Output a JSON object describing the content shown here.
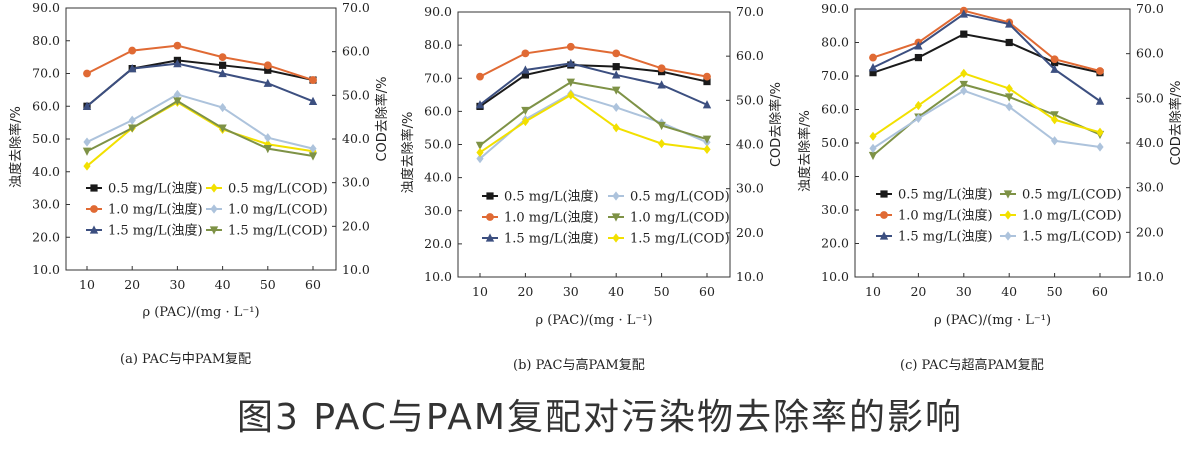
{
  "figure_title": "图3   PAC与PAM复配对污染物去除率的影响",
  "chart_data": [
    {
      "type": "line",
      "caption": "(a) PAC与中PAM复配",
      "xlabel": "ρ (PAC)/(mg · L⁻¹)",
      "ylabel_left": "浊度去除率/%",
      "ylabel_right": "COD去除率/%",
      "x": [
        10,
        20,
        30,
        40,
        50,
        60
      ],
      "xticks": [
        "10",
        "20",
        "30",
        "40",
        "50",
        "60"
      ],
      "ylim_left": [
        10,
        90
      ],
      "ylim_right": [
        10,
        70
      ],
      "yticks_left": [
        "10.0",
        "20.0",
        "30.0",
        "40.0",
        "50.0",
        "60.0",
        "70.0",
        "80.0",
        "90.0"
      ],
      "yticks_right": [
        "10.0",
        "20.0",
        "30.0",
        "40.0",
        "50.0",
        "60.0",
        "70.0"
      ],
      "series": [
        {
          "name": "0.5 mg/L(浊度)",
          "axis": "left",
          "color": "#1a1a1a",
          "marker": "square",
          "values": [
            60,
            71.5,
            74,
            72.5,
            71,
            68
          ]
        },
        {
          "name": "1.0 mg/L(浊度)",
          "axis": "left",
          "color": "#e06a34",
          "marker": "circle",
          "values": [
            70,
            77,
            78.5,
            75,
            72.5,
            68
          ]
        },
        {
          "name": "1.5 mg/L(浊度)",
          "axis": "left",
          "color": "#3c4f80",
          "marker": "triangle",
          "values": [
            60,
            71.5,
            73,
            70,
            67,
            61.5
          ]
        },
        {
          "name": "0.5 mg/L(COD)",
          "axis": "right",
          "color": "#f2e000",
          "marker": "diamond",
          "values": [
            33.8,
            42.5,
            48.4,
            42.2,
            38.8,
            37.2
          ]
        },
        {
          "name": "1.0 mg/L(COD)",
          "axis": "right",
          "color": "#adc3dc",
          "marker": "diamond",
          "values": [
            39.3,
            44.3,
            50.2,
            47.2,
            40.3,
            37.8
          ]
        },
        {
          "name": "1.5 mg/L(COD)",
          "axis": "right",
          "color": "#7e9246",
          "marker": "triangle-down",
          "values": [
            37.2,
            42.5,
            48.7,
            42.5,
            37.8,
            36.1
          ]
        }
      ]
    },
    {
      "type": "line",
      "caption": "(b) PAC与高PAM复配",
      "xlabel": "ρ (PAC)/(mg · L⁻¹)",
      "ylabel_left": "浊度去除率/%",
      "ylabel_right": "COD去除率/%",
      "x": [
        10,
        20,
        30,
        40,
        50,
        60
      ],
      "xticks": [
        "10",
        "20",
        "30",
        "40",
        "50",
        "60"
      ],
      "ylim_left": [
        10,
        90
      ],
      "ylim_right": [
        10,
        70
      ],
      "yticks_left": [
        "10.0",
        "20.0",
        "30.0",
        "40.0",
        "50.0",
        "60.0",
        "70.0",
        "80.0",
        "90.0"
      ],
      "yticks_right": [
        "10.0",
        "20.0",
        "30.0",
        "40.0",
        "50.0",
        "60.0",
        "70.0"
      ],
      "series": [
        {
          "name": "0.5 mg/L(浊度)",
          "axis": "left",
          "color": "#1a1a1a",
          "marker": "square",
          "values": [
            61.5,
            71,
            74,
            73.5,
            72,
            69
          ]
        },
        {
          "name": "1.0 mg/L(浊度)",
          "axis": "left",
          "color": "#e06a34",
          "marker": "circle",
          "values": [
            70.5,
            77.5,
            79.5,
            77.5,
            73,
            70.5
          ]
        },
        {
          "name": "1.5 mg/L(浊度)",
          "axis": "left",
          "color": "#3c4f80",
          "marker": "triangle",
          "values": [
            62,
            72.5,
            74.5,
            71,
            68,
            62
          ]
        },
        {
          "name": "0.5 mg/L(COD)",
          "axis": "right",
          "color": "#adc3dc",
          "marker": "diamond",
          "values": [
            36.8,
            45.7,
            51.5,
            48.4,
            44.9,
            40.5
          ]
        },
        {
          "name": "1.0 mg/L(COD)",
          "axis": "right",
          "color": "#7e9246",
          "marker": "triangle-down",
          "values": [
            39.8,
            47.7,
            54.1,
            52.3,
            44.3,
            41.2
          ]
        },
        {
          "name": "1.5 mg/L(COD)",
          "axis": "right",
          "color": "#f2e000",
          "marker": "diamond",
          "values": [
            38.2,
            45.2,
            51.2,
            43.8,
            40.2,
            38.9
          ]
        }
      ]
    },
    {
      "type": "line",
      "caption": "(c) PAC与超高PAM复配",
      "xlabel": "ρ (PAC)/(mg · L⁻¹)",
      "ylabel_left": "浊度去除率/%",
      "ylabel_right": "COD去除率/%",
      "x": [
        10,
        20,
        30,
        40,
        50,
        60
      ],
      "xticks": [
        "10",
        "20",
        "30",
        "40",
        "50",
        "60"
      ],
      "ylim_left": [
        10,
        90
      ],
      "ylim_right": [
        10,
        70
      ],
      "yticks_left": [
        "10.0",
        "20.0",
        "30.0",
        "40.0",
        "50.0",
        "60.0",
        "70.0",
        "80.0",
        "90.0"
      ],
      "yticks_right": [
        "10.0",
        "20.0",
        "30.0",
        "40.0",
        "50.0",
        "60.0",
        "70.0"
      ],
      "series": [
        {
          "name": "0.5 mg/L(浊度)",
          "axis": "left",
          "color": "#1a1a1a",
          "marker": "square",
          "values": [
            71,
            75.5,
            82.5,
            80,
            74,
            71
          ]
        },
        {
          "name": "1.0 mg/L(浊度)",
          "axis": "left",
          "color": "#e06a34",
          "marker": "circle",
          "values": [
            75.5,
            80,
            89.5,
            86,
            75,
            71.5
          ]
        },
        {
          "name": "1.5 mg/L(浊度)",
          "axis": "left",
          "color": "#3c4f80",
          "marker": "triangle",
          "values": [
            72.5,
            79,
            88.5,
            85.5,
            72,
            62.5
          ]
        },
        {
          "name": "0.5 mg/L(COD)",
          "axis": "right",
          "color": "#7e9246",
          "marker": "triangle-down",
          "values": [
            37.2,
            45.8,
            53.1,
            50.3,
            46.3,
            41.9
          ]
        },
        {
          "name": "1.0 mg/L(COD)",
          "axis": "right",
          "color": "#f2e000",
          "marker": "diamond",
          "values": [
            41.5,
            48.4,
            55.6,
            52.2,
            45.2,
            42.4
          ]
        },
        {
          "name": "1.5 mg/L(COD)",
          "axis": "right",
          "color": "#adc3dc",
          "marker": "diamond",
          "values": [
            38.8,
            45.5,
            51.7,
            48.1,
            40.5,
            39.1
          ]
        }
      ]
    }
  ]
}
